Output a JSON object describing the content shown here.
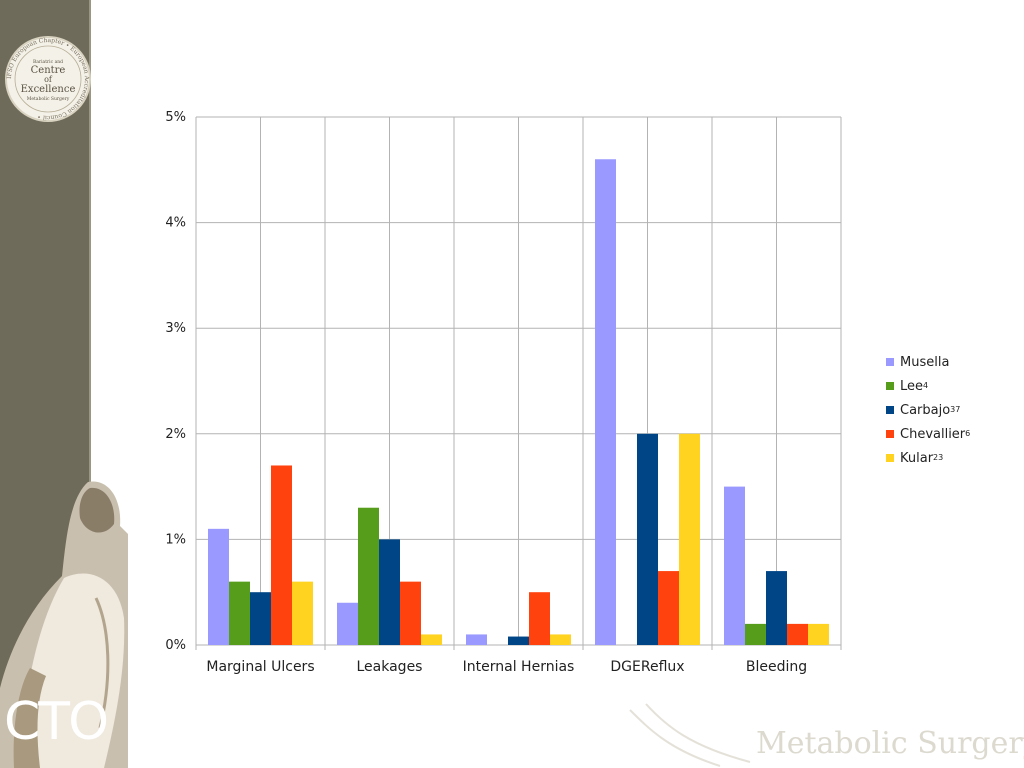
{
  "slide": {
    "sidebar_logo": {
      "ring_text": "IFSO European Chapter • European Accreditation Council •",
      "center_lines": [
        "Bariatric and",
        "Centre",
        "of",
        "Excellence",
        "Metabolic Surgery"
      ]
    },
    "cto_logo": "CTO",
    "watermark": "Metabolic Surgery",
    "colors": {
      "sidebar": "#6f6b5b",
      "grid": "#b3b3b3"
    }
  },
  "chart_data": {
    "type": "bar",
    "title": "",
    "xlabel": "",
    "ylabel": "",
    "ylim": [
      0,
      5
    ],
    "y_ticks": [
      "0%",
      "1%",
      "2%",
      "3%",
      "4%",
      "5%"
    ],
    "grid": true,
    "legend_position": "right",
    "categories": [
      "Marginal Ulcers",
      "Leakages",
      "Internal Hernias",
      "DGEReflux",
      "Bleeding"
    ],
    "series": [
      {
        "name": "Musella",
        "sup": "",
        "color": "#9999ff",
        "values": [
          1.1,
          0.4,
          0.1,
          4.6,
          1.5
        ]
      },
      {
        "name": "Lee",
        "sup": "4",
        "color": "#579d1c",
        "values": [
          0.6,
          1.3,
          0,
          0,
          0.2
        ]
      },
      {
        "name": "Carbajo",
        "sup": "37",
        "color": "#004586",
        "values": [
          0.5,
          1.0,
          0.08,
          2.0,
          0.7
        ]
      },
      {
        "name": "Chevallier",
        "sup": "6",
        "color": "#ff420e",
        "values": [
          1.7,
          0.6,
          0.5,
          0.7,
          0.2
        ]
      },
      {
        "name": "Kular",
        "sup": "23",
        "color": "#ffd320",
        "values": [
          0.6,
          0.1,
          0.1,
          2.0,
          0.2
        ]
      }
    ]
  }
}
